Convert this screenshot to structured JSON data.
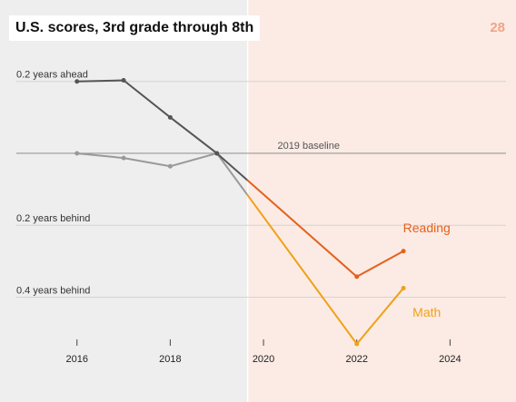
{
  "page_number": "28",
  "colors": {
    "pre_pandemic_bg": "#eeeeee",
    "post_pandemic_bg": "#fbebe4",
    "reading": "#e4611e",
    "math": "#f0a116",
    "reading_pre": "#555555",
    "math_pre": "#999999",
    "baseline": "#999999",
    "grid": "#d4d4d4"
  },
  "chart_data": {
    "type": "line",
    "title": "U.S. scores, 3rd grade through 8th",
    "xlim": [
      2014.7,
      2025.2
    ],
    "ylim": [
      -0.52,
      0.275
    ],
    "x_ticks": [
      2016,
      2018,
      2020,
      2022,
      2024
    ],
    "x_tick_labels": [
      "2016",
      "2018",
      "2020",
      "2022",
      "2024"
    ],
    "y_gridlines": [
      {
        "value": 0.2,
        "label": "0.2 years ahead"
      },
      {
        "value": -0.2,
        "label": "0.2 years behind"
      },
      {
        "value": -0.4,
        "label": "0.4 years behind"
      }
    ],
    "baseline": {
      "value": 0,
      "label": "2019 baseline"
    },
    "shaded_from": 2019.65,
    "series": [
      {
        "name": "Reading",
        "label_anchor": [
          2023.5,
          -0.22
        ],
        "points": [
          {
            "x": 2016,
            "y": 0.2
          },
          {
            "x": 2017,
            "y": 0.203
          },
          {
            "x": 2018,
            "y": 0.1
          },
          {
            "x": 2019,
            "y": 0
          },
          {
            "x": 2022,
            "y": -0.343
          },
          {
            "x": 2023,
            "y": -0.272
          }
        ]
      },
      {
        "name": "Math",
        "label_anchor": [
          2023.5,
          -0.455
        ],
        "points": [
          {
            "x": 2016,
            "y": 0
          },
          {
            "x": 2017,
            "y": -0.013
          },
          {
            "x": 2018,
            "y": -0.036
          },
          {
            "x": 2019,
            "y": 0
          },
          {
            "x": 2022,
            "y": -0.53
          },
          {
            "x": 2023,
            "y": -0.375
          }
        ]
      }
    ]
  }
}
